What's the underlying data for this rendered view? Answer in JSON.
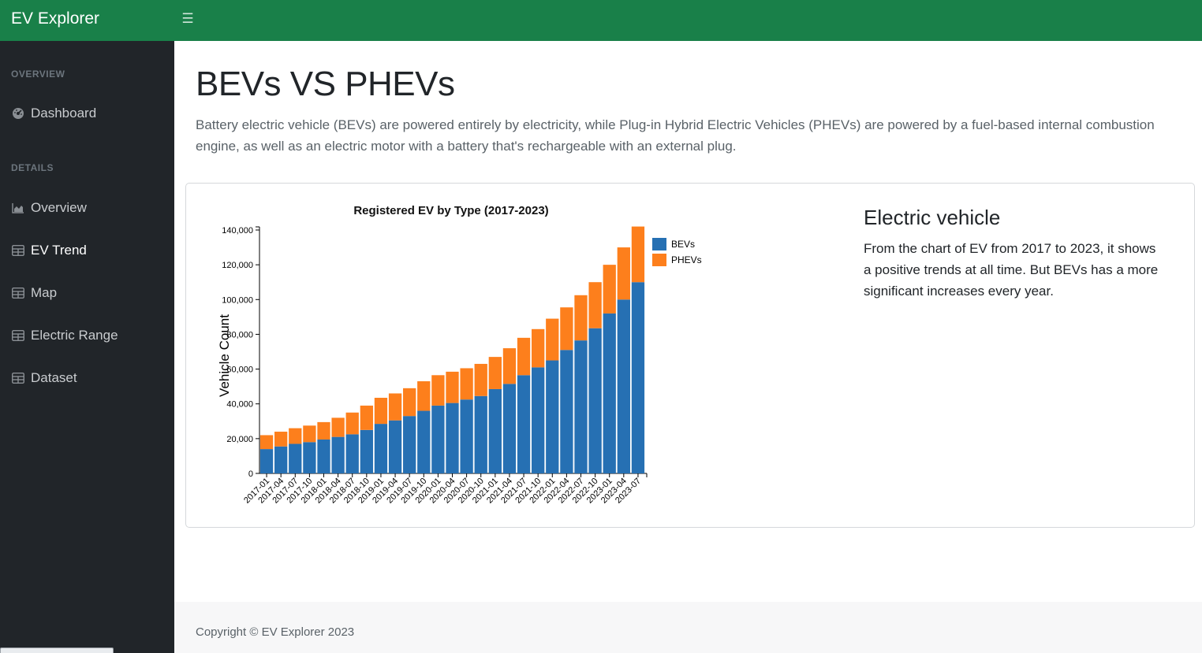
{
  "app": {
    "brand": "EV Explorer",
    "menu_icon": "hamburger-icon"
  },
  "sidebar": {
    "sections": [
      {
        "heading": "OVERVIEW",
        "items": [
          {
            "label": "Dashboard",
            "icon": "speedometer-icon",
            "active": false
          }
        ]
      },
      {
        "heading": "DETAILS",
        "items": [
          {
            "label": "Overview",
            "icon": "area-chart-icon",
            "active": false
          },
          {
            "label": "EV Trend",
            "icon": "table-icon",
            "active": true
          },
          {
            "label": "Map",
            "icon": "table-icon",
            "active": false
          },
          {
            "label": "Electric Range",
            "icon": "table-icon",
            "active": false
          },
          {
            "label": "Dataset",
            "icon": "table-icon",
            "active": false
          }
        ]
      }
    ]
  },
  "page": {
    "title": "BEVs VS PHEVs",
    "lead": "Battery electric vehicle (BEVs) are powered entirely by electricity, while Plug-in Hybrid Electric Vehicles (PHEVs) are powered by a fuel-based internal combustion engine, as well as an electric motor with a battery that's rechargeable with an external plug."
  },
  "panel": {
    "title": "Electric vehicle",
    "body": "From the chart of EV from 2017 to 2023, it shows a positive trends at all time. But BEVs has a more significant increases every year."
  },
  "footer": {
    "copyright": "Copyright © EV Explorer 2023"
  },
  "colors": {
    "topbar": "#198049",
    "sidebar": "#212529",
    "bev": "#2670b3",
    "phev": "#fd7f1c"
  },
  "chart_data": {
    "type": "bar",
    "stacked": true,
    "title": "Registered EV by Type (2017-2023)",
    "ylabel": "Vehicle Count",
    "xlabel": "",
    "ylim": [
      0,
      140000
    ],
    "yticks": [
      0,
      20000,
      40000,
      60000,
      80000,
      100000,
      120000,
      140000
    ],
    "ytick_labels": [
      "0",
      "20,000",
      "40,000",
      "60,000",
      "80,000",
      "100,000",
      "120,000",
      "140,000"
    ],
    "legend_position": "top-right",
    "categories": [
      "2017-01",
      "2017-04",
      "2017-07",
      "2017-10",
      "2018-01",
      "2018-04",
      "2018-07",
      "2018-10",
      "2019-01",
      "2019-04",
      "2019-07",
      "2019-10",
      "2020-01",
      "2020-04",
      "2020-07",
      "2020-10",
      "2021-01",
      "2021-04",
      "2021-07",
      "2021-10",
      "2022-01",
      "2022-04",
      "2022-07",
      "2022-10",
      "2023-01",
      "2023-04",
      "2023-07"
    ],
    "series": [
      {
        "name": "BEVs",
        "color": "#2670b3",
        "values": [
          14000,
          15500,
          17000,
          18000,
          19500,
          21000,
          22500,
          25000,
          28500,
          30500,
          33000,
          36000,
          39000,
          40500,
          42500,
          44500,
          48500,
          51500,
          56500,
          61000,
          65000,
          71000,
          76500,
          83500,
          92000,
          100000,
          110000
        ]
      },
      {
        "name": "PHEVs",
        "color": "#fd7f1c",
        "values": [
          8000,
          8500,
          9000,
          9500,
          10000,
          11000,
          12500,
          14000,
          15000,
          15500,
          16000,
          17000,
          17500,
          18000,
          18000,
          18500,
          18500,
          20500,
          21500,
          22000,
          24000,
          24500,
          26000,
          26500,
          28000,
          30000,
          32000
        ]
      }
    ]
  }
}
